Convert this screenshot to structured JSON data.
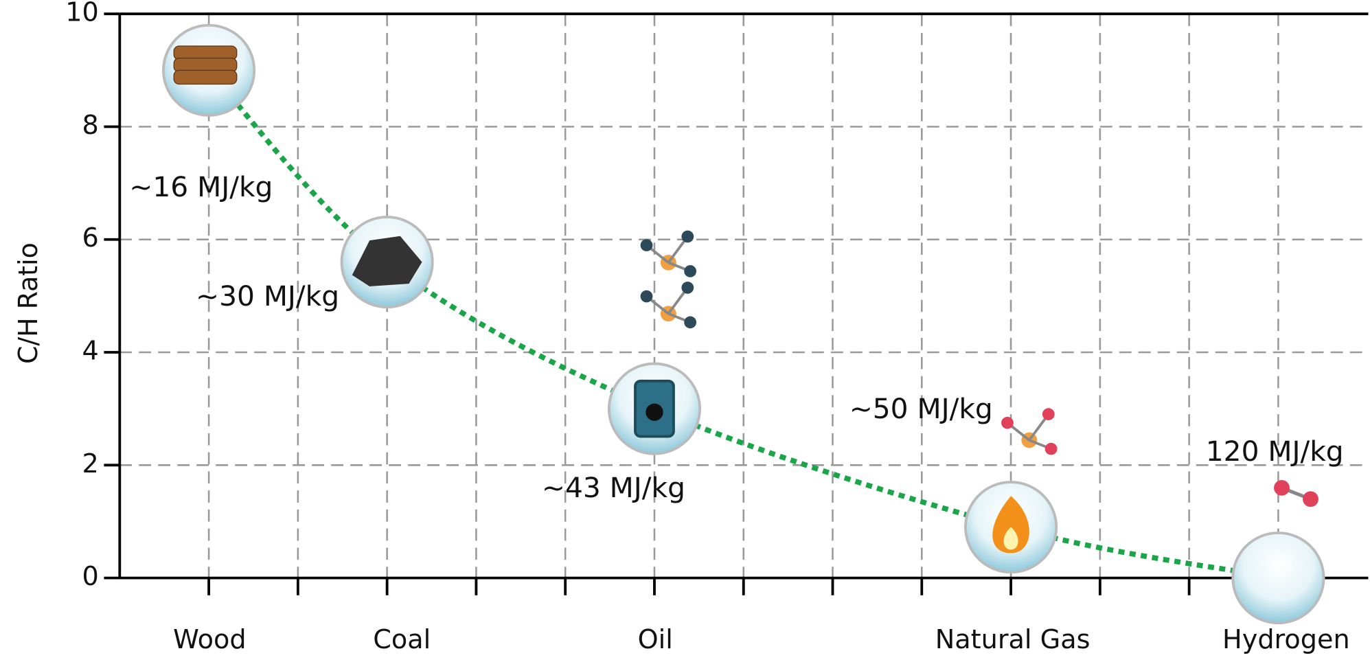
{
  "chart_data": {
    "type": "line",
    "y_label": "C/H Ratio",
    "categories": [
      "Wood",
      "Coal",
      "Oil",
      "Natural Gas",
      "Hydrogen"
    ],
    "values": [
      9,
      5.6,
      3,
      0.9,
      0
    ],
    "annotations": [
      "~16 MJ/kg",
      "~30 MJ/kg",
      "~43 MJ/kg",
      "~50 MJ/kg",
      "120 MJ/kg"
    ],
    "color": "#1aa548",
    "ylim": [
      0,
      10
    ],
    "yticks": [
      0,
      2,
      4,
      6,
      8,
      10
    ],
    "grid": true
  }
}
